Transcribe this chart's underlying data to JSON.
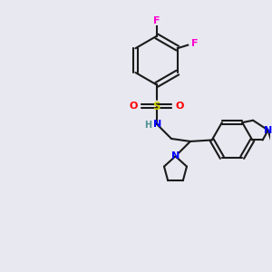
{
  "bg_color": "#e8e8f0",
  "bond_color": "#1a1a1a",
  "bond_width": 1.5,
  "atom_colors": {
    "F": "#ff00cc",
    "N": "#0000ff",
    "O": "#ff0000",
    "S": "#cccc00",
    "C": "#1a1a1a",
    "H": "#4a9090"
  },
  "font_size": 7.5
}
